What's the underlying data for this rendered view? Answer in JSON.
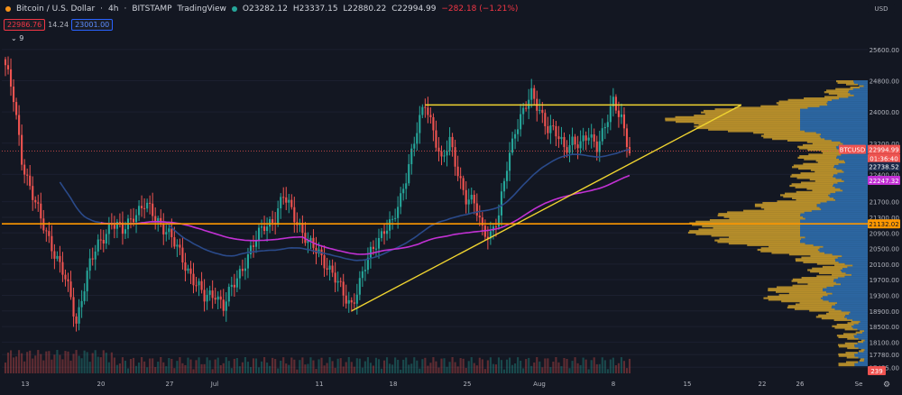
{
  "header": {
    "symbol": "Bitcoin / U.S. Dollar",
    "interval": "4h",
    "exchange": "BITSTAMP",
    "source": "TradingView",
    "ohlc": {
      "o": "O23282.12",
      "h": "H23337.15",
      "l": "L22880.22",
      "c": "C22994.99",
      "chg": "−282.18 (−1.21%)"
    },
    "bid": "22986.76",
    "spread": "14.24",
    "ask": "23001.00",
    "indicators_toggle": "9"
  },
  "colors": {
    "background": "#131722",
    "up": "#26a69a",
    "down": "#ef5350",
    "triangle": "#f0d430",
    "support": "#ff9800",
    "ma_magenta": "#c231d4",
    "ma_blue": "#2a4a8a",
    "vp_gold": "#c79a2c",
    "vp_blue": "#2f6fae"
  },
  "chart_data": {
    "type": "candlestick",
    "title": "Bitcoin / U.S. Dollar · 4h · BITSTAMP",
    "currency": "USD",
    "ylim": [
      17300,
      26500
    ],
    "y_ticks": [
      "25600.00",
      "24800.00",
      "24000.00",
      "23200.00",
      "22400.00",
      "21700.00",
      "21300.00",
      "20900.00",
      "20500.00",
      "20100.00",
      "19700.00",
      "19300.00",
      "18900.00",
      "18500.00",
      "18100.00",
      "17780.00",
      "17455.00"
    ],
    "x_ticks": [
      "13",
      "20",
      "27",
      "Jul",
      "11",
      "18",
      "25",
      "Aug",
      "8",
      "15",
      "22",
      "26",
      "Se"
    ],
    "close_path": [
      [
        0,
        25200
      ],
      [
        3,
        24300
      ],
      [
        6,
        22800
      ],
      [
        9,
        22100
      ],
      [
        13,
        21200
      ],
      [
        17,
        20600
      ],
      [
        21,
        19900
      ],
      [
        24,
        19200
      ],
      [
        26,
        18600
      ],
      [
        28,
        19300
      ],
      [
        31,
        20100
      ],
      [
        35,
        20700
      ],
      [
        39,
        21200
      ],
      [
        43,
        20900
      ],
      [
        47,
        21400
      ],
      [
        51,
        21600
      ],
      [
        55,
        21300
      ],
      [
        59,
        21000
      ],
      [
        62,
        20600
      ],
      [
        66,
        20100
      ],
      [
        70,
        19600
      ],
      [
        73,
        19200
      ],
      [
        77,
        19400
      ],
      [
        80,
        19000
      ],
      [
        84,
        19600
      ],
      [
        88,
        20200
      ],
      [
        92,
        20700
      ],
      [
        95,
        21100
      ],
      [
        99,
        21300
      ],
      [
        102,
        21800
      ],
      [
        105,
        21500
      ],
      [
        108,
        21100
      ],
      [
        111,
        20600
      ],
      [
        115,
        20400
      ],
      [
        118,
        20100
      ],
      [
        121,
        19700
      ],
      [
        124,
        19300
      ],
      [
        127,
        19100
      ],
      [
        130,
        19600
      ],
      [
        133,
        20200
      ],
      [
        136,
        20700
      ],
      [
        139,
        21000
      ],
      [
        142,
        21100
      ],
      [
        145,
        21800
      ],
      [
        148,
        22700
      ],
      [
        151,
        23500
      ],
      [
        154,
        24200
      ],
      [
        157,
        23600
      ],
      [
        160,
        22700
      ],
      [
        163,
        23200
      ],
      [
        166,
        22500
      ],
      [
        169,
        21800
      ],
      [
        172,
        21600
      ],
      [
        175,
        21000
      ],
      [
        178,
        20900
      ],
      [
        181,
        21300
      ],
      [
        184,
        22600
      ],
      [
        187,
        23600
      ],
      [
        190,
        24000
      ],
      [
        193,
        24400
      ],
      [
        196,
        24100
      ],
      [
        199,
        23600
      ],
      [
        202,
        23400
      ],
      [
        205,
        23100
      ],
      [
        208,
        23300
      ],
      [
        211,
        23100
      ],
      [
        214,
        23400
      ],
      [
        217,
        23200
      ],
      [
        220,
        23600
      ],
      [
        223,
        24200
      ],
      [
        226,
        23900
      ],
      [
        229,
        23000
      ]
    ],
    "price_labels": [
      {
        "text": "USD",
        "role": "axis-currency"
      },
      {
        "text": "BTCUSD",
        "role": "symbol-tag"
      },
      {
        "text": "22994.99",
        "role": "last-price"
      },
      {
        "text": "01:36:40",
        "role": "countdown"
      },
      {
        "text": "22738.52",
        "role": "ma-blue"
      },
      {
        "text": "22247.32",
        "role": "ma-magenta"
      },
      {
        "text": "21132.02",
        "role": "support"
      },
      {
        "text": "239",
        "role": "volume"
      }
    ],
    "drawings": {
      "resistance": 24180,
      "support": 21132.02,
      "current_price": 22994.99,
      "triangle_low": 18900
    },
    "moving_averages": [
      {
        "name": "MA blue",
        "last": 22738.52
      },
      {
        "name": "MA magenta",
        "last": 22247.32
      }
    ],
    "volume_profile": "present"
  }
}
